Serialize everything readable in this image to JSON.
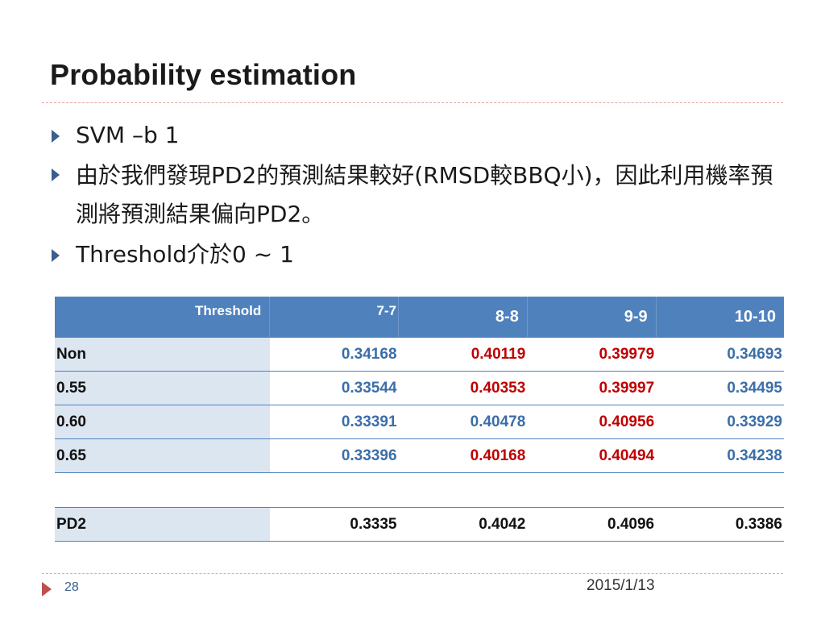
{
  "slide": {
    "title": "Probability estimation",
    "bullets": [
      "SVM –b 1",
      "由於我們發現PD2的預測結果較好(RMSD較BBQ小)，因此利用機率預測將預測結果偏向PD2。",
      "Threshold介於0 ~ 1"
    ],
    "page_number": "28",
    "date": "2015/1/13"
  },
  "table": {
    "headers": [
      "Threshold",
      "7-7",
      "8-8",
      "9-9",
      "10-10"
    ],
    "rows": [
      {
        "label": "Non",
        "values": [
          "0.34168",
          "0.40119",
          "0.39979",
          "0.34693"
        ]
      },
      {
        "label": "0.55",
        "values": [
          "0.33544",
          "0.40353",
          "0.39997",
          "0.34495"
        ]
      },
      {
        "label": "0.60",
        "values": [
          "0.33391",
          "0.40478",
          "0.40956",
          "0.33929"
        ]
      },
      {
        "label": "0.65",
        "values": [
          "0.33396",
          "0.40168",
          "0.40494",
          "0.34238"
        ]
      }
    ],
    "pd2_row": {
      "label": "PD2",
      "values": [
        "0.3335",
        "0.4042",
        "0.4096",
        "0.3386"
      ]
    }
  },
  "colors": {
    "header_bg": "#4f81bd",
    "row_label_bg": "#dce6f1",
    "blue_value": "#3b6ea8",
    "red_value": "#c00000",
    "divider": "#e6a6a6",
    "bullet_arrow": "#3b5e8c",
    "footer_marker": "#c0504d"
  }
}
